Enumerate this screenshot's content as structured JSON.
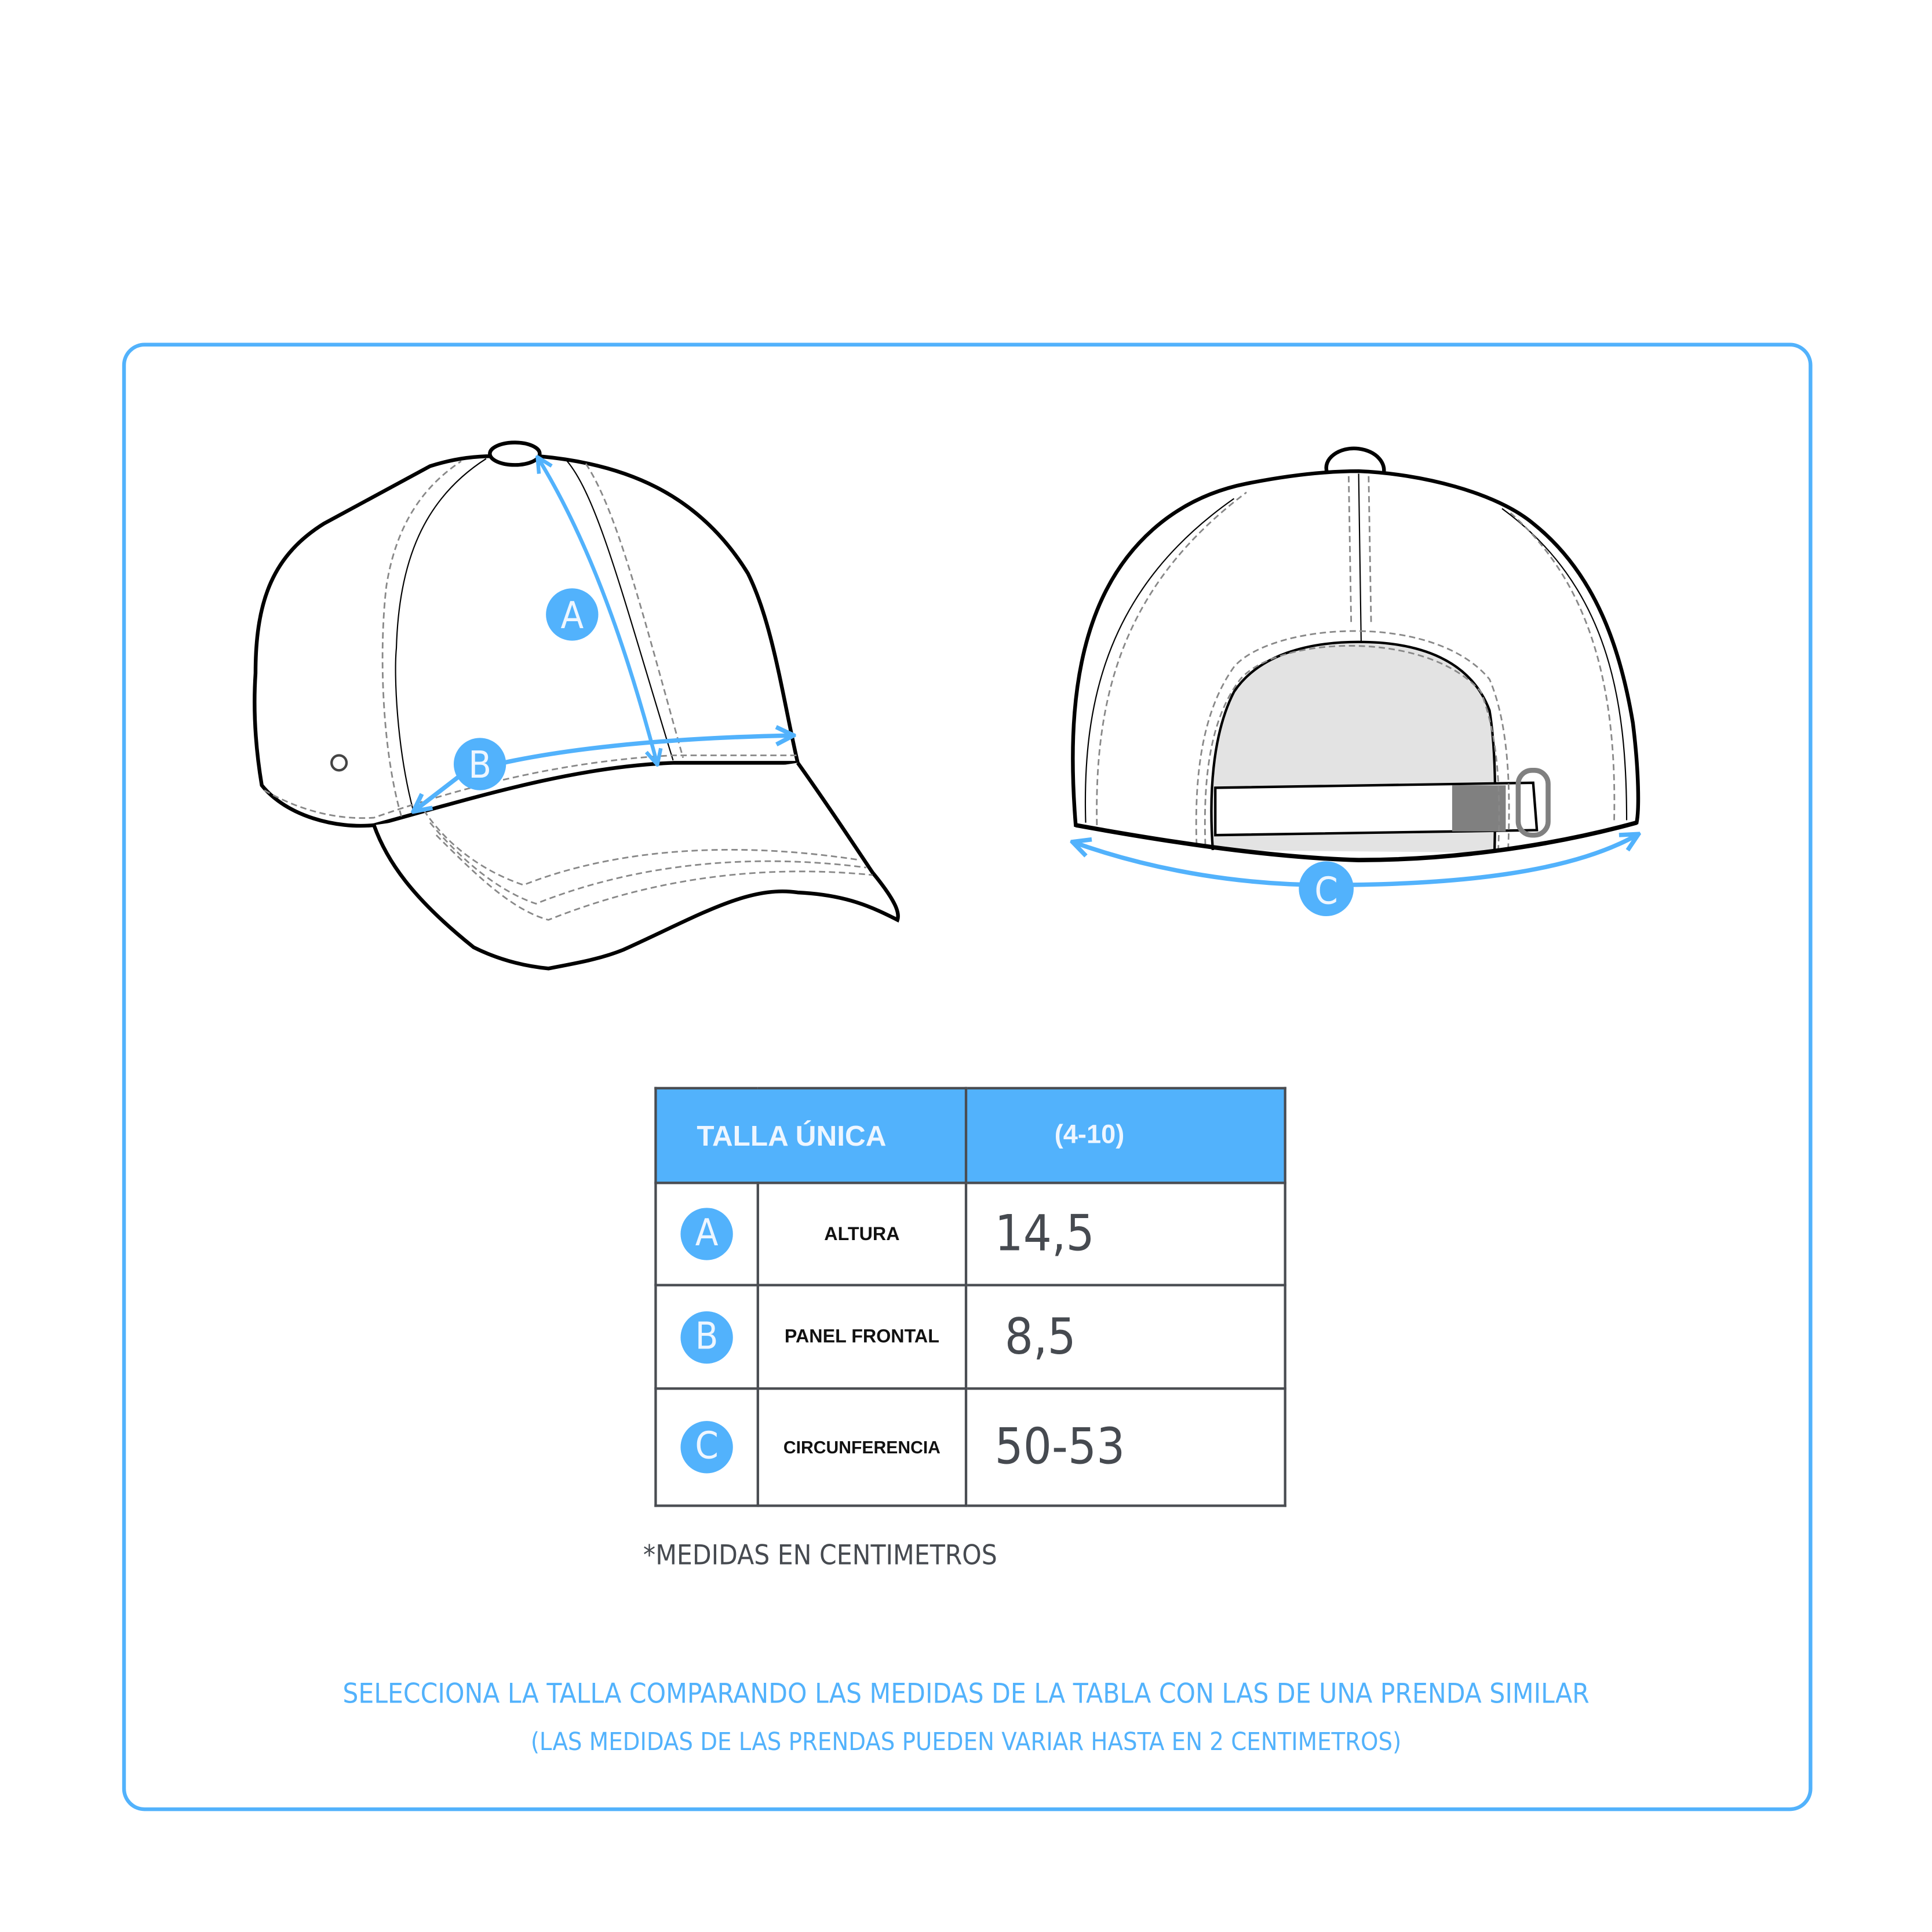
{
  "colors": {
    "accent": "#52b2fc",
    "text_dark": "#464a50",
    "outline": "#000000"
  },
  "diagram": {
    "markers": {
      "a": "A",
      "b": "B",
      "c": "C"
    }
  },
  "table": {
    "header": {
      "size_label": "TALLA ÚNICA",
      "size_range": "(4-10)"
    },
    "rows": [
      {
        "marker": "A",
        "label": "ALTURA",
        "value": "14,5"
      },
      {
        "marker": "B",
        "label": "PANEL FRONTAL",
        "value": "8,5"
      },
      {
        "marker": "C",
        "label": "CIRCUNFERENCIA",
        "value": "50-53"
      }
    ]
  },
  "note": "*MEDIDAS EN CENTIMETROS",
  "footer": {
    "line1": "SELECCIONA LA TALLA COMPARANDO LAS MEDIDAS DE LA TABLA CON LAS DE UNA PRENDA SIMILAR",
    "line2": "(LAS MEDIDAS DE LAS PRENDAS PUEDEN VARIAR HASTA EN 2 CENTIMETROS)"
  }
}
